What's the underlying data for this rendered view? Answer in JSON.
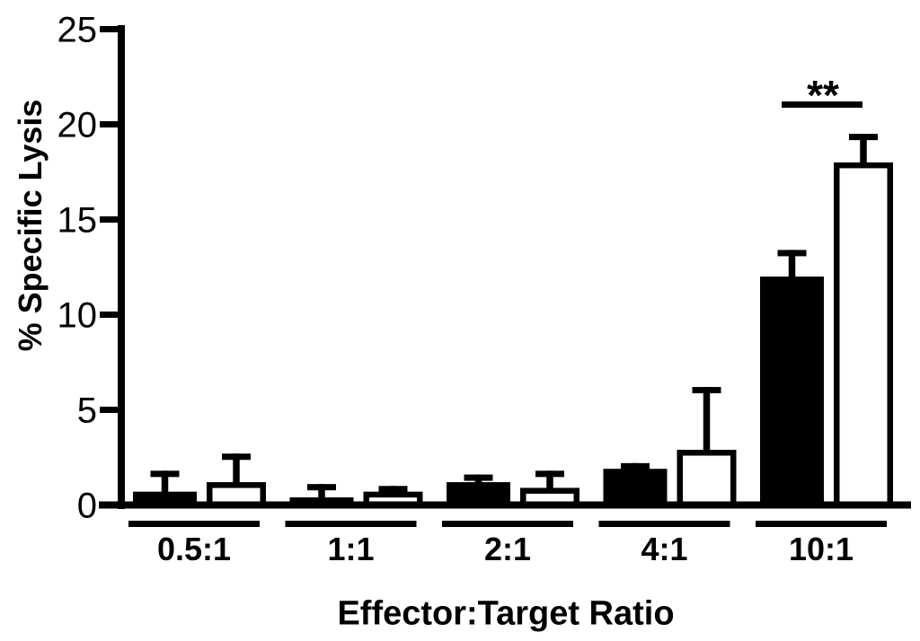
{
  "figure": {
    "background_color": "#ffffff",
    "ink_color": "#000000"
  },
  "chart_data": {
    "type": "bar",
    "title": "",
    "xlabel": "Effector:Target Ratio",
    "ylabel": "% Specific Lysis",
    "ylim": [
      0,
      25
    ],
    "yticks": [
      0,
      5,
      10,
      15,
      20,
      25
    ],
    "grid": "off",
    "legend": "none",
    "categories": [
      "0.5:1",
      "1:1",
      "2:1",
      "4:1",
      "10:1"
    ],
    "series": [
      {
        "name": "black-filled-bars",
        "fill": "#000000",
        "values": [
          0.7,
          0.4,
          1.2,
          1.9,
          12.0
        ],
        "errors_upper": [
          1.1,
          0.7,
          0.4,
          0.3,
          1.4
        ]
      },
      {
        "name": "white-open-bars",
        "fill": "#ffffff",
        "values": [
          1.2,
          0.7,
          0.9,
          2.9,
          18.0
        ],
        "errors_upper": [
          1.5,
          0.3,
          0.9,
          3.3,
          1.5
        ]
      }
    ],
    "significance": {
      "label": "**",
      "category": "10:1",
      "between": [
        "black-filled-bars",
        "white-open-bars"
      ],
      "line_value": 21.0
    }
  }
}
